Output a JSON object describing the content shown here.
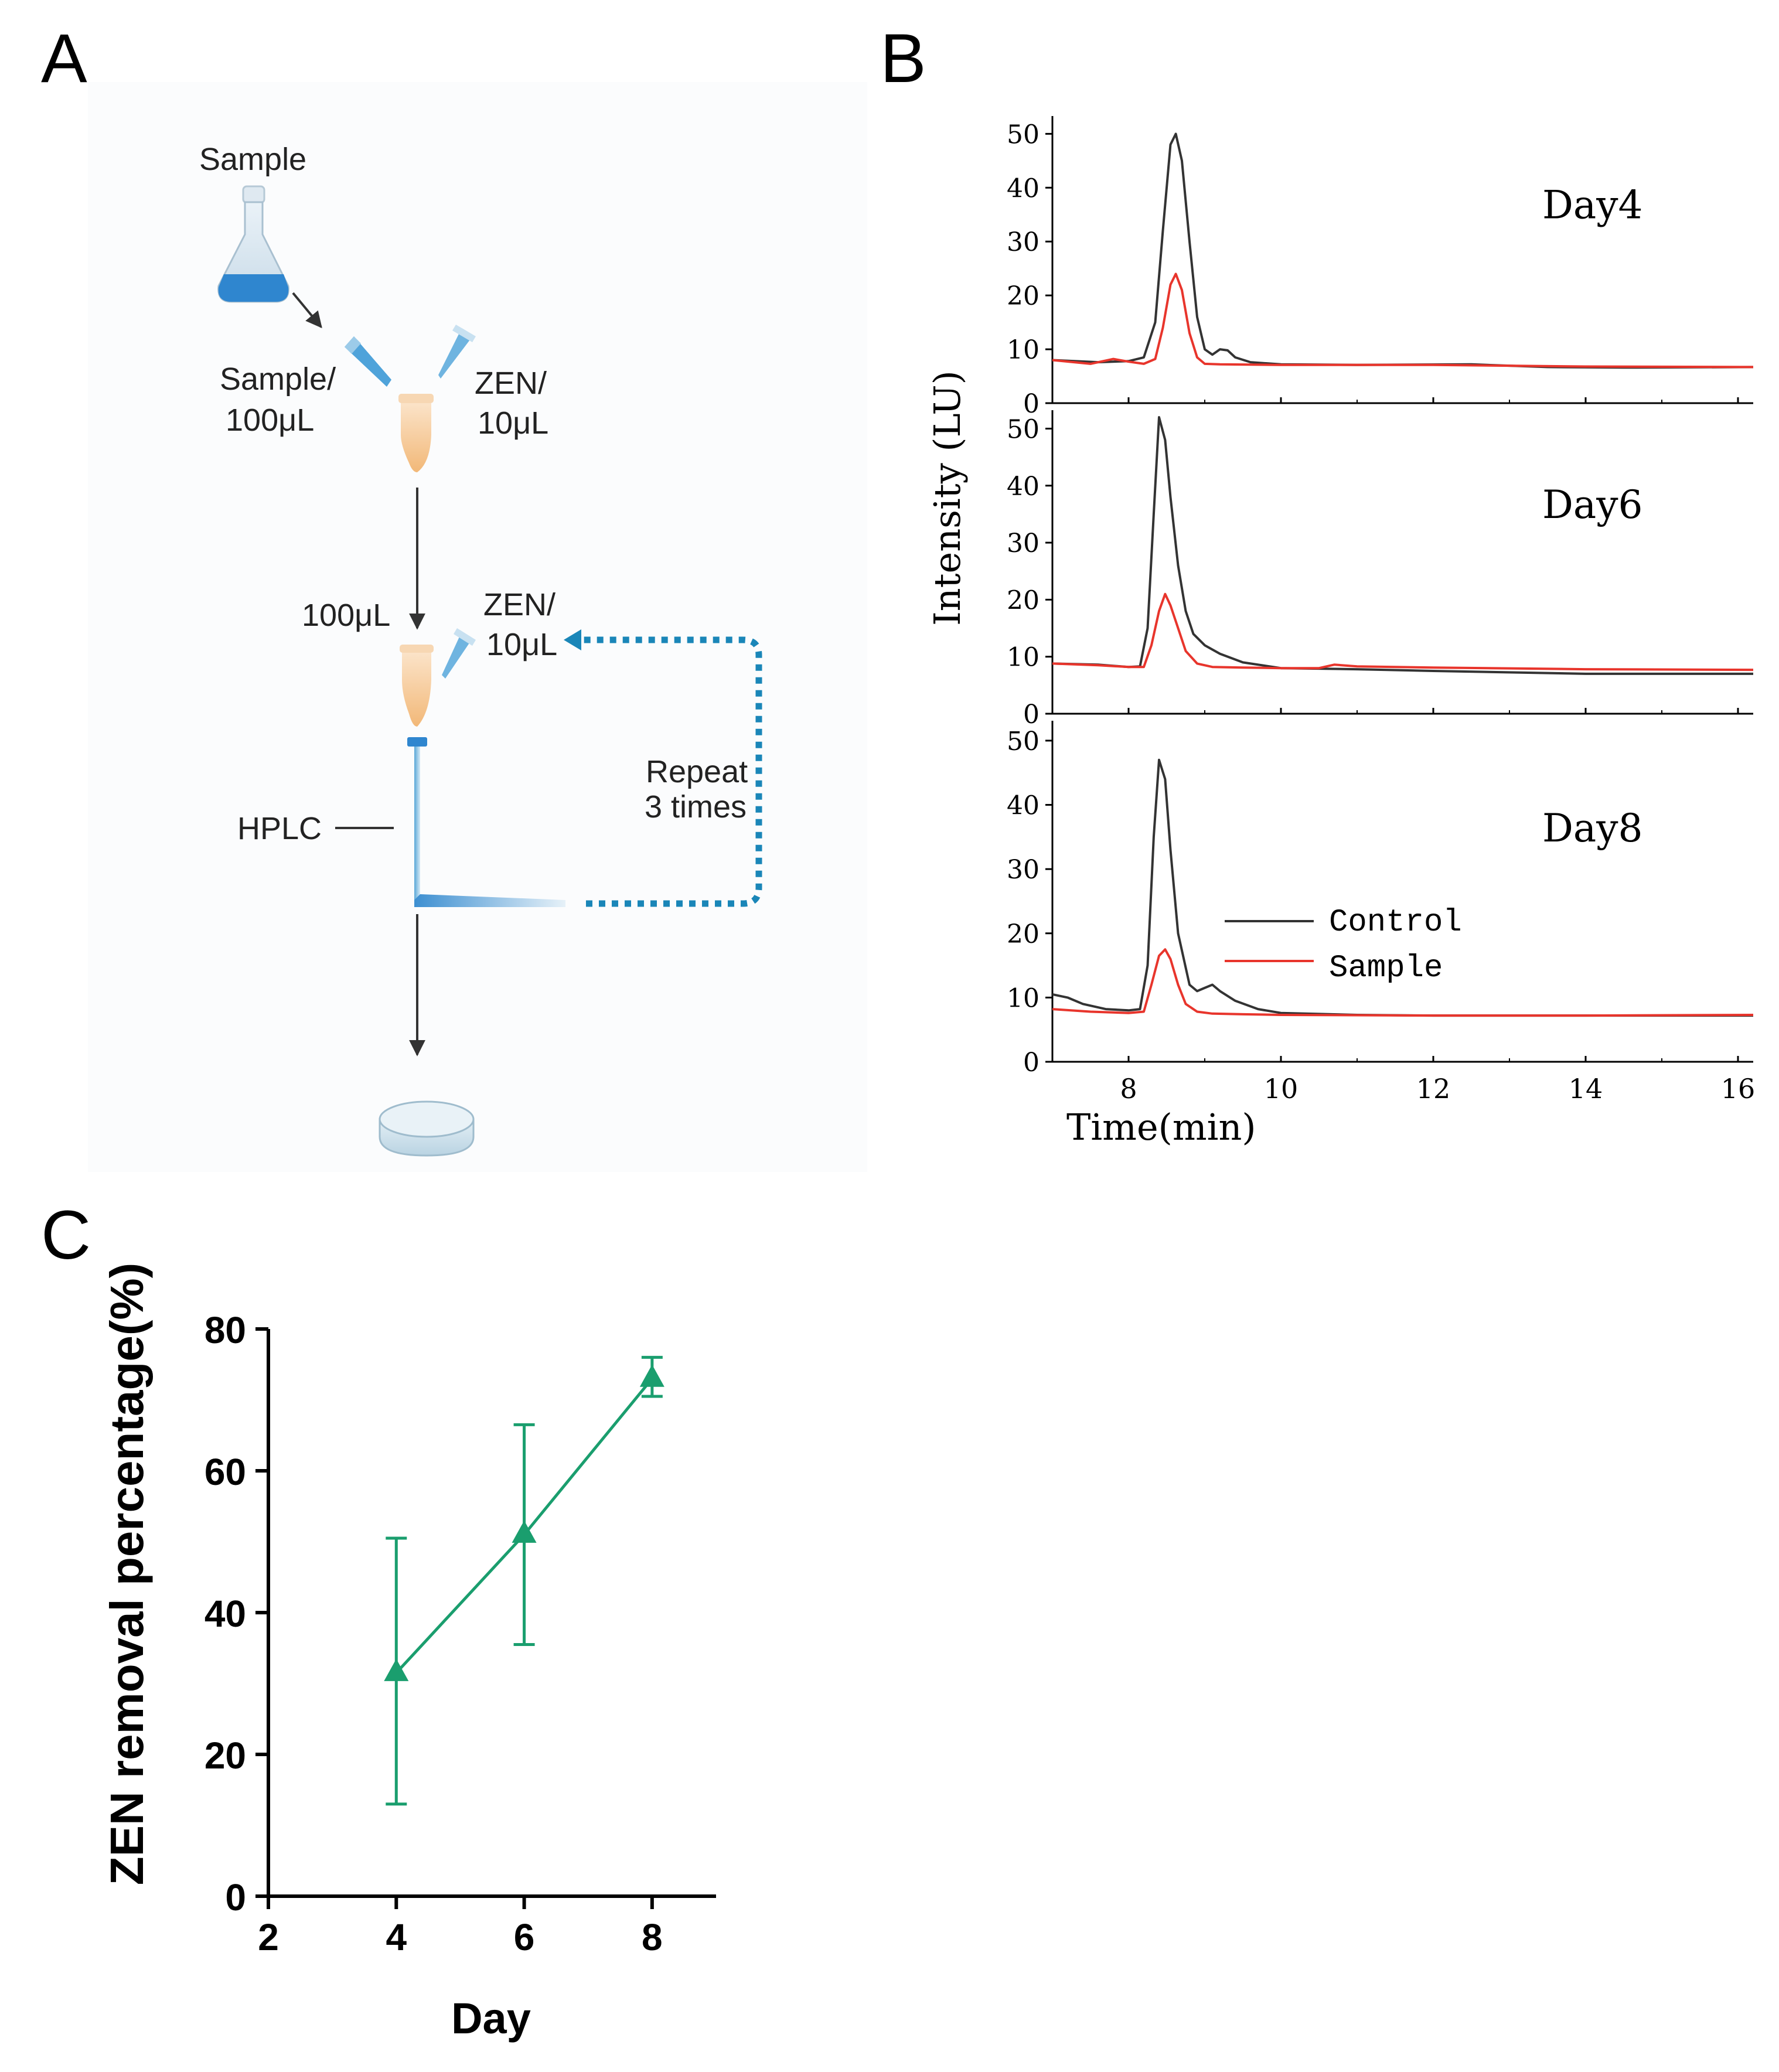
{
  "panels": {
    "a": "A",
    "b": "B",
    "c": "C"
  },
  "diagram": {
    "sample_label": "Sample",
    "sample_volume_label": [
      "Sample/",
      "100μL"
    ],
    "zen_volume_label_1": [
      "ZEN/",
      "10μL"
    ],
    "transfer_volume_label": "100μL",
    "zen_volume_label_2": [
      "ZEN/",
      "10μL"
    ],
    "hplc_label": "HPLC",
    "repeat_label": [
      "Repeat",
      "3 times"
    ],
    "colors": {
      "liquid": "#3d8fd1",
      "tube": "#f6c89a",
      "dotted": "#1a86b8"
    }
  },
  "chart_data": [
    {
      "type": "line",
      "title": "",
      "xlabel": "Time(min)",
      "ylabel": "Intensity (LU)",
      "xlim": [
        7,
        16.2
      ],
      "ylim": [
        0,
        52
      ],
      "xticks": [
        8,
        10,
        12,
        14,
        16
      ],
      "yticks": [
        0,
        10,
        20,
        30,
        40,
        50
      ],
      "legend": {
        "placement": "inside-bottom-panel",
        "entries": [
          "Control",
          "Sample"
        ]
      },
      "colors": {
        "Control": "#333333",
        "Sample": "#e8352c"
      },
      "subplots": [
        {
          "label": "Day4",
          "series": [
            {
              "name": "Control",
              "x": [
                7.0,
                7.6,
                8.0,
                8.2,
                8.35,
                8.45,
                8.55,
                8.62,
                8.7,
                8.8,
                8.9,
                9.0,
                9.1,
                9.2,
                9.3,
                9.4,
                9.6,
                10.0,
                11.0,
                12.5,
                13.5,
                14.5,
                16.2
              ],
              "y": [
                8,
                7.6,
                7.8,
                8.5,
                15,
                32,
                48,
                50,
                45,
                30,
                16,
                10,
                9,
                10,
                9.8,
                8.5,
                7.6,
                7.2,
                7.1,
                7.2,
                6.7,
                6.6,
                6.7
              ]
            },
            {
              "name": "Sample",
              "x": [
                7.0,
                7.5,
                7.8,
                8.0,
                8.2,
                8.35,
                8.45,
                8.55,
                8.62,
                8.7,
                8.8,
                8.9,
                9.0,
                9.2,
                10.0,
                12.0,
                14.0,
                16.2
              ],
              "y": [
                8,
                7.3,
                8.2,
                7.7,
                7.3,
                8.2,
                14,
                22,
                24,
                21,
                13,
                8.5,
                7.3,
                7.2,
                7.1,
                7.1,
                6.8,
                6.7
              ]
            }
          ]
        },
        {
          "label": "Day6",
          "series": [
            {
              "name": "Control",
              "x": [
                7.0,
                7.6,
                8.0,
                8.15,
                8.25,
                8.33,
                8.4,
                8.48,
                8.55,
                8.65,
                8.75,
                8.85,
                9.0,
                9.2,
                9.5,
                10.0,
                11.0,
                12.0,
                14.0,
                16.2
              ],
              "y": [
                8.8,
                8.6,
                8.2,
                8.3,
                15,
                35,
                52,
                48,
                38,
                26,
                18,
                14,
                12,
                10.5,
                9,
                8,
                7.8,
                7.5,
                7,
                7
              ]
            },
            {
              "name": "Sample",
              "x": [
                7.0,
                7.6,
                8.0,
                8.2,
                8.3,
                8.4,
                8.48,
                8.55,
                8.65,
                8.75,
                8.9,
                9.1,
                9.5,
                10.0,
                10.5,
                10.7,
                11.0,
                12.0,
                14.0,
                16.2
              ],
              "y": [
                8.8,
                8.5,
                8.2,
                8.2,
                12,
                18,
                21,
                19,
                15,
                11,
                8.8,
                8.2,
                8.1,
                8,
                8,
                8.6,
                8.3,
                8.1,
                7.8,
                7.7
              ]
            }
          ]
        },
        {
          "label": "Day8",
          "series": [
            {
              "name": "Control",
              "x": [
                7.0,
                7.2,
                7.4,
                7.7,
                8.0,
                8.15,
                8.25,
                8.33,
                8.4,
                8.48,
                8.55,
                8.65,
                8.8,
                8.9,
                9.0,
                9.1,
                9.2,
                9.4,
                9.7,
                10.0,
                11.0,
                12.0,
                14.0,
                16.2
              ],
              "y": [
                10.5,
                10,
                9,
                8.2,
                8.0,
                8.2,
                15,
                35,
                47,
                44,
                33,
                20,
                12,
                11,
                11.5,
                12,
                11,
                9.5,
                8.2,
                7.6,
                7.3,
                7.2,
                7.2,
                7.2
              ]
            },
            {
              "name": "Sample",
              "x": [
                7.0,
                7.5,
                8.0,
                8.2,
                8.3,
                8.4,
                8.48,
                8.55,
                8.65,
                8.75,
                8.9,
                9.1,
                9.5,
                10.0,
                12.0,
                14.0,
                16.2
              ],
              "y": [
                8.2,
                7.8,
                7.6,
                7.8,
                12,
                16.5,
                17.5,
                16,
                12,
                9,
                7.8,
                7.5,
                7.4,
                7.3,
                7.2,
                7.2,
                7.3
              ]
            }
          ]
        }
      ]
    },
    {
      "type": "line",
      "title": "",
      "xlabel": "Day",
      "ylabel": "ZEN removal percentage(%)",
      "xlim": [
        2,
        9
      ],
      "ylim": [
        0,
        80
      ],
      "xticks": [
        2,
        4,
        6,
        8
      ],
      "yticks": [
        0,
        20,
        40,
        60,
        80
      ],
      "marker": "triangle",
      "color": "#1a9e6e",
      "series": [
        {
          "name": "ZEN removal",
          "x": [
            4,
            6,
            8
          ],
          "y": [
            31.5,
            51,
            73
          ],
          "err_low": [
            13,
            35.5,
            70.5
          ],
          "err_high": [
            50.5,
            66.5,
            76
          ]
        }
      ]
    }
  ]
}
